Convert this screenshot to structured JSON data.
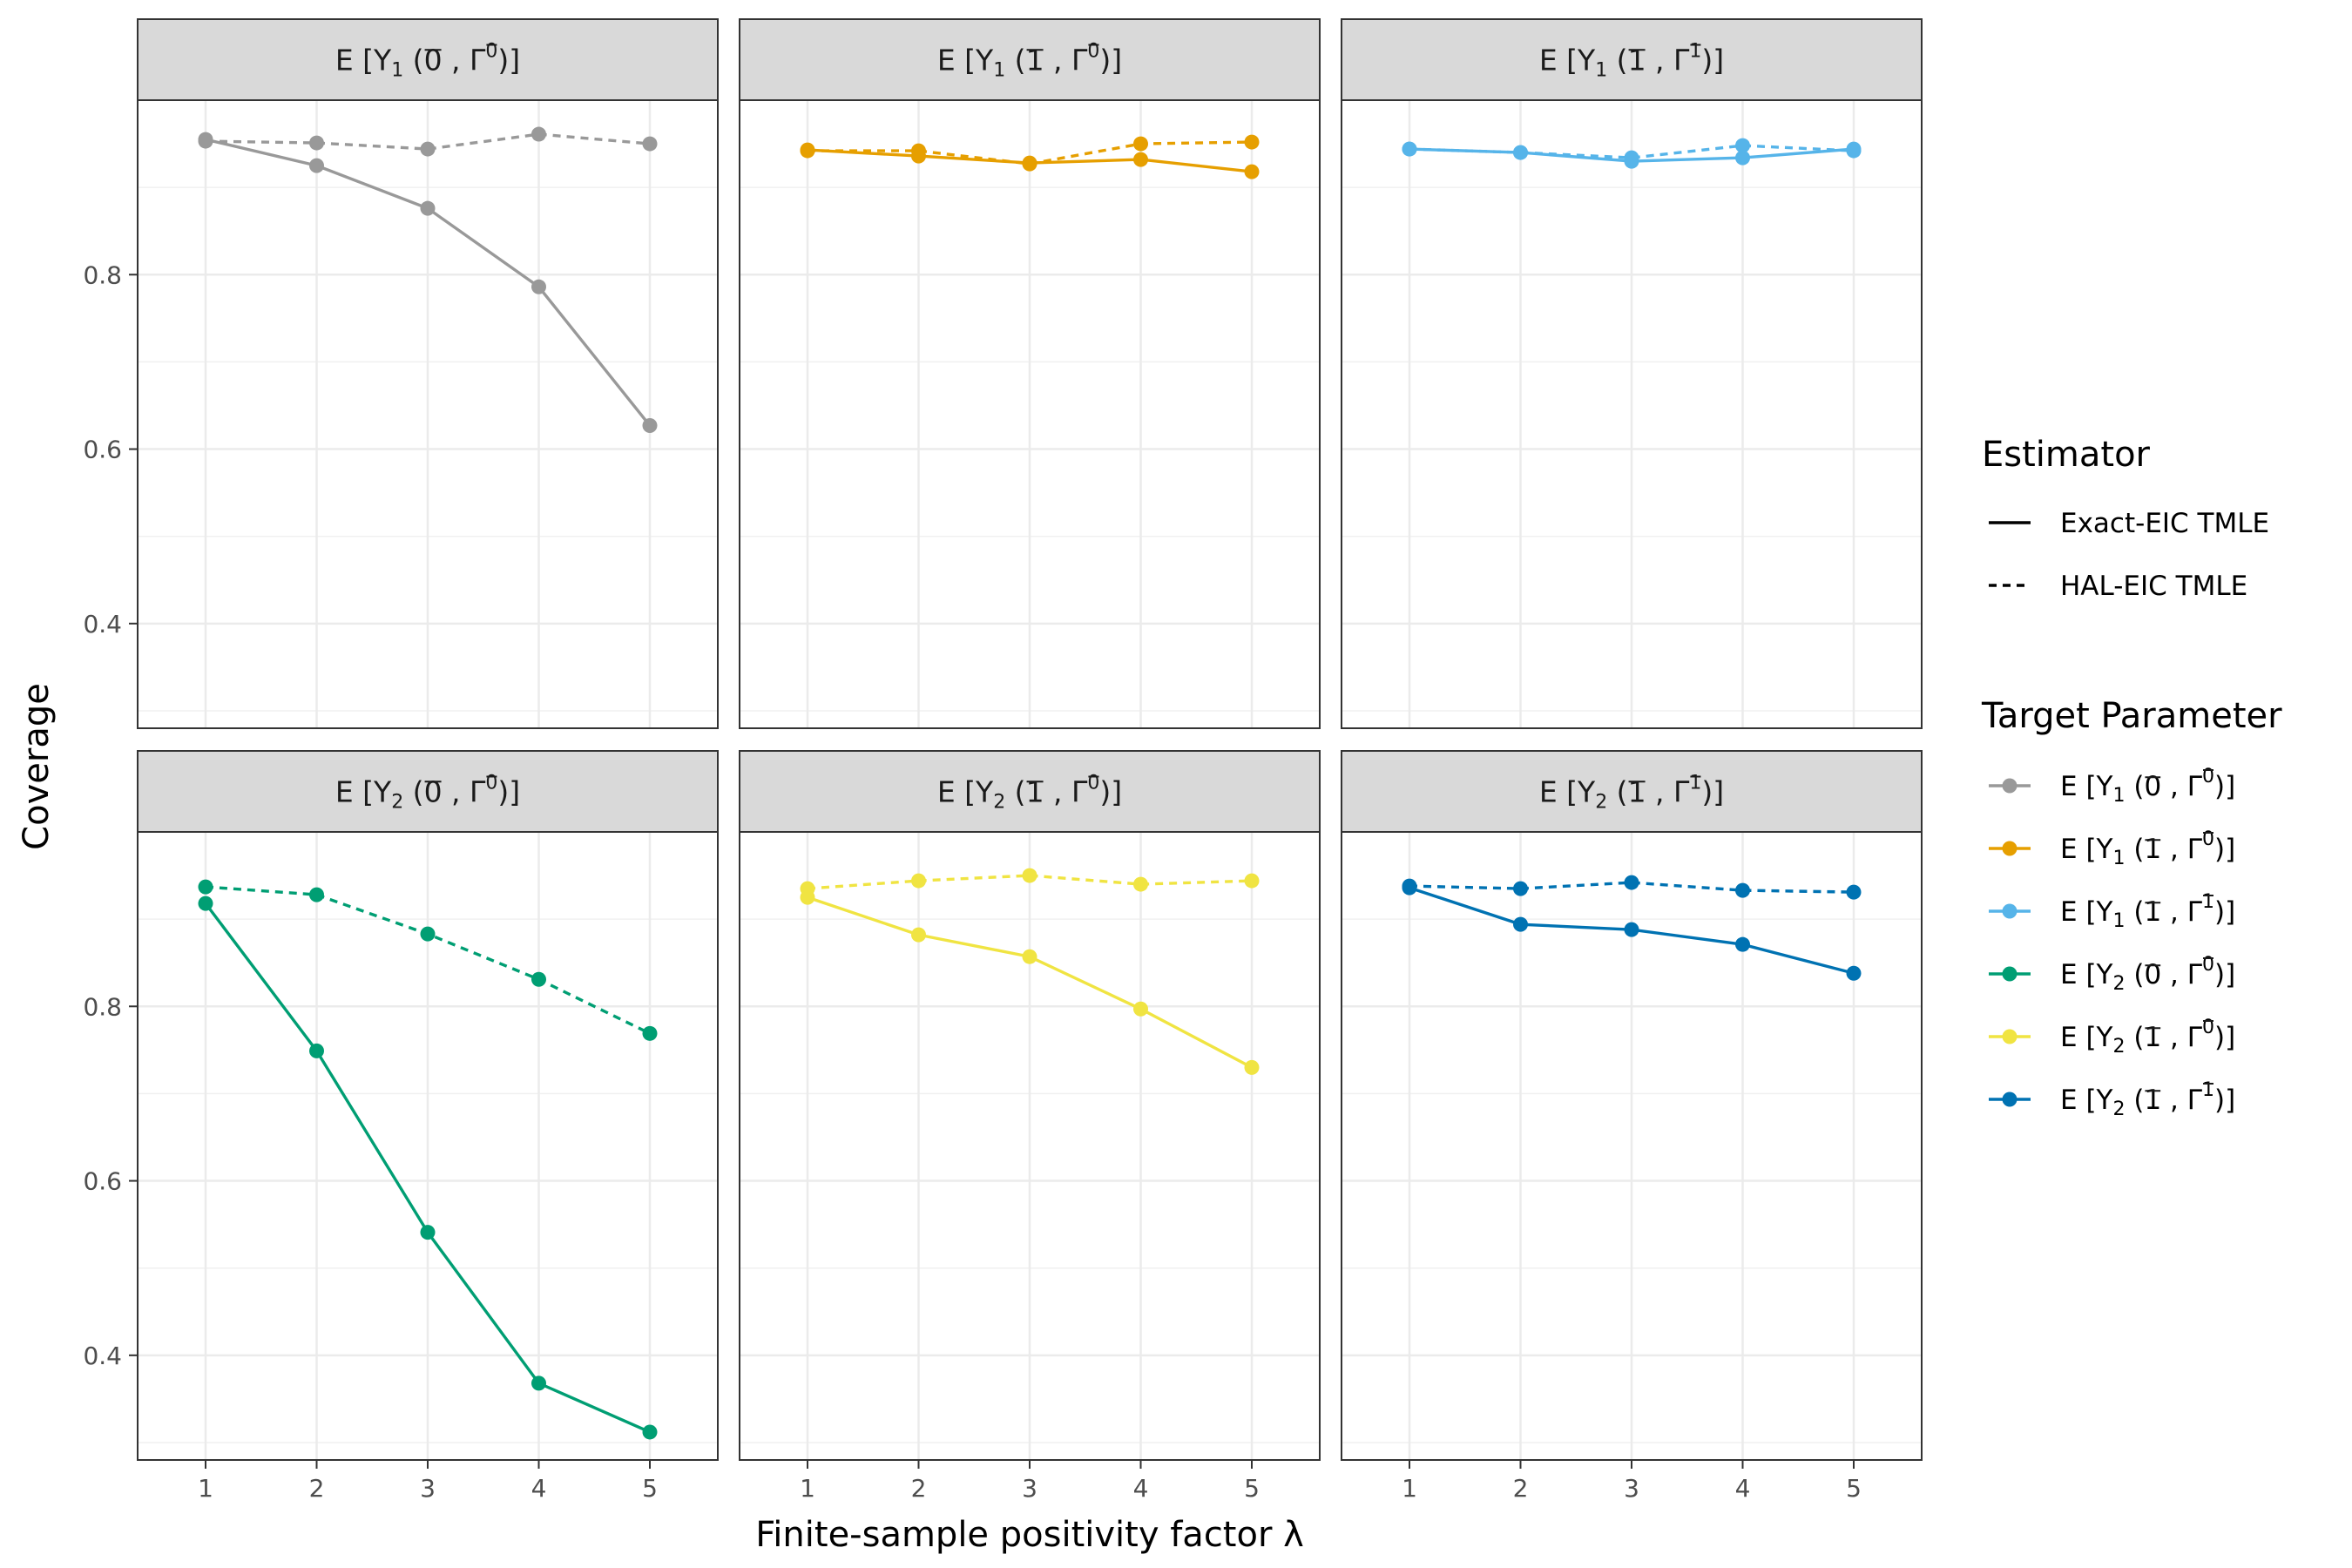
{
  "chart_data": {
    "type": "line",
    "layout": "facet-grid 2 rows x 3 columns",
    "xlabel": "Finite-sample positivity factor λ",
    "ylabel": "Coverage",
    "x": [
      1,
      2,
      3,
      4,
      5
    ],
    "x_ticks": [
      "1",
      "2",
      "3",
      "4",
      "5"
    ],
    "ylim": [
      0.28,
      1.0
    ],
    "y_ticks": [
      0.4,
      0.6,
      0.8
    ],
    "y_tick_labels": [
      "0.4",
      "0.6",
      "0.8"
    ],
    "estimator_legend": {
      "title": "Estimator",
      "items": [
        {
          "label": "Exact-EIC TMLE",
          "linetype": "solid"
        },
        {
          "label": "HAL-EIC TMLE",
          "linetype": "dashed"
        }
      ]
    },
    "target_legend": {
      "title": "Target Parameter"
    },
    "panels": [
      {
        "key": "y1-00",
        "outcome": "1",
        "treat": "0",
        "gamma": "0",
        "color": "#999999",
        "series": [
          {
            "estimator": "Exact-EIC TMLE",
            "values": [
              0.955,
              0.925,
              0.876,
              0.786,
              0.627
            ]
          },
          {
            "estimator": "HAL-EIC TMLE",
            "values": [
              0.953,
              0.951,
              0.944,
              0.961,
              0.95
            ]
          }
        ]
      },
      {
        "key": "y1-10",
        "outcome": "1",
        "treat": "1",
        "gamma": "0",
        "color": "#E69F00",
        "series": [
          {
            "estimator": "Exact-EIC TMLE",
            "values": [
              0.943,
              0.936,
              0.928,
              0.932,
              0.918
            ]
          },
          {
            "estimator": "HAL-EIC TMLE",
            "values": [
              0.942,
              0.942,
              0.927,
              0.95,
              0.952
            ]
          }
        ]
      },
      {
        "key": "y1-11",
        "outcome": "1",
        "treat": "1",
        "gamma": "1",
        "color": "#56B4E9",
        "series": [
          {
            "estimator": "Exact-EIC TMLE",
            "values": [
              0.944,
              0.94,
              0.93,
              0.934,
              0.944
            ]
          },
          {
            "estimator": "HAL-EIC TMLE",
            "values": [
              0.944,
              0.94,
              0.934,
              0.948,
              0.942
            ]
          }
        ]
      },
      {
        "key": "y2-00",
        "outcome": "2",
        "treat": "0",
        "gamma": "0",
        "color": "#009E73",
        "series": [
          {
            "estimator": "Exact-EIC TMLE",
            "values": [
              0.918,
              0.749,
              0.541,
              0.368,
              0.312
            ]
          },
          {
            "estimator": "HAL-EIC TMLE",
            "values": [
              0.937,
              0.928,
              0.883,
              0.831,
              0.769
            ]
          }
        ]
      },
      {
        "key": "y2-10",
        "outcome": "2",
        "treat": "1",
        "gamma": "0",
        "color": "#F0E442",
        "series": [
          {
            "estimator": "Exact-EIC TMLE",
            "values": [
              0.925,
              0.882,
              0.857,
              0.797,
              0.73
            ]
          },
          {
            "estimator": "HAL-EIC TMLE",
            "values": [
              0.935,
              0.944,
              0.95,
              0.94,
              0.944
            ]
          }
        ]
      },
      {
        "key": "y2-11",
        "outcome": "2",
        "treat": "1",
        "gamma": "1",
        "color": "#0072B2",
        "series": [
          {
            "estimator": "Exact-EIC TMLE",
            "values": [
              0.936,
              0.894,
              0.888,
              0.871,
              0.838
            ]
          },
          {
            "estimator": "HAL-EIC TMLE",
            "values": [
              0.938,
              0.935,
              0.942,
              0.933,
              0.931
            ]
          }
        ]
      }
    ]
  }
}
